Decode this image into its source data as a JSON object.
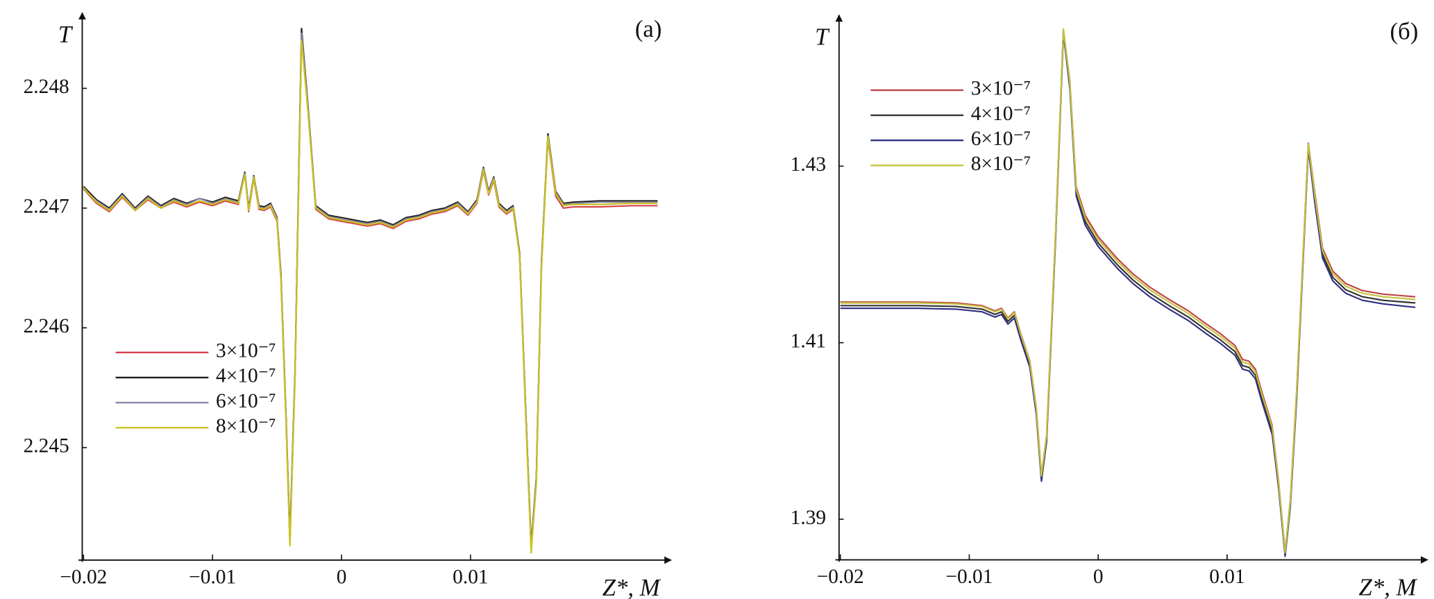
{
  "chart_data": [
    {
      "type": "line",
      "panel_label": "(a)",
      "y_label": "T",
      "x_label": "Z*, M",
      "legend": "center left",
      "xlim": [
        -0.0201,
        0.0254
      ],
      "ylim": [
        2.24406,
        2.2486
      ],
      "xticks": [
        {
          "value": -0.02,
          "label": "−0.02"
        },
        {
          "value": -0.01,
          "label": "−0.01"
        },
        0,
        0.01
      ],
      "yticks": [
        2.245,
        2.246,
        2.247,
        2.248
      ],
      "x": [
        -0.02,
        -0.019,
        -0.018,
        -0.017,
        -0.016,
        -0.015,
        -0.014,
        -0.013,
        -0.012,
        -0.011,
        -0.01,
        -0.009,
        -0.008,
        -0.0075,
        -0.0072,
        -0.0068,
        -0.0064,
        -0.006,
        -0.0055,
        -0.005,
        -0.0047,
        -0.0043,
        -0.004,
        -0.0036,
        -0.0031,
        -0.0026,
        -0.002,
        -0.001,
        0,
        0.001,
        0.002,
        0.003,
        0.004,
        0.005,
        0.006,
        0.007,
        0.008,
        0.009,
        0.0098,
        0.0105,
        0.011,
        0.0114,
        0.0118,
        0.0122,
        0.0128,
        0.0133,
        0.0138,
        0.0143,
        0.0147,
        0.0151,
        0.0155,
        0.016,
        0.0166,
        0.0172,
        0.018,
        0.02,
        0.0225,
        0.0245
      ],
      "series": [
        {
          "name": "3×10⁻⁷",
          "color": "#d4404c",
          "values": [
            2.24716,
            2.24704,
            2.24697,
            2.24709,
            2.24698,
            2.24707,
            2.247,
            2.24705,
            2.24701,
            2.24705,
            2.24702,
            2.24706,
            2.24703,
            2.24729,
            2.24697,
            2.24725,
            2.24699,
            2.24698,
            2.24701,
            2.24689,
            2.24642,
            2.24522,
            2.2442,
            2.24562,
            2.24845,
            2.24782,
            2.24699,
            2.24691,
            2.24689,
            2.24687,
            2.24685,
            2.24687,
            2.24683,
            2.24689,
            2.24691,
            2.24695,
            2.24697,
            2.24702,
            2.24694,
            2.24704,
            2.24731,
            2.24711,
            2.24723,
            2.24701,
            2.24695,
            2.24699,
            2.24661,
            2.24522,
            2.24414,
            2.24472,
            2.24652,
            2.24758,
            2.2471,
            2.247,
            2.24701,
            2.24701,
            2.24702,
            2.24702
          ]
        },
        {
          "name": "4×10⁻⁷",
          "color": "#1a1a1a",
          "values": [
            2.24718,
            2.24707,
            2.247,
            2.24712,
            2.247,
            2.2471,
            2.24702,
            2.24708,
            2.24704,
            2.24708,
            2.24705,
            2.24709,
            2.24706,
            2.2473,
            2.247,
            2.24727,
            2.24702,
            2.24701,
            2.24704,
            2.24692,
            2.24645,
            2.24525,
            2.24425,
            2.24565,
            2.2485,
            2.24785,
            2.24702,
            2.24694,
            2.24692,
            2.2469,
            2.24688,
            2.2469,
            2.24686,
            2.24692,
            2.24694,
            2.24698,
            2.247,
            2.24705,
            2.24697,
            2.24707,
            2.24734,
            2.24714,
            2.24726,
            2.24704,
            2.24698,
            2.24702,
            2.24663,
            2.24525,
            2.24418,
            2.24475,
            2.24655,
            2.24762,
            2.24714,
            2.24704,
            2.24705,
            2.24706,
            2.24706,
            2.24706
          ]
        },
        {
          "name": "6×10⁻⁷",
          "color": "#8a86a6",
          "values": [
            2.24716,
            2.24706,
            2.24699,
            2.24711,
            2.24699,
            2.24709,
            2.24701,
            2.24707,
            2.24703,
            2.24708,
            2.24704,
            2.24708,
            2.24705,
            2.24729,
            2.24699,
            2.24726,
            2.24701,
            2.247,
            2.24703,
            2.24691,
            2.24643,
            2.24523,
            2.24422,
            2.24563,
            2.24846,
            2.24783,
            2.24701,
            2.24693,
            2.24691,
            2.24689,
            2.24687,
            2.24689,
            2.24685,
            2.24691,
            2.24693,
            2.24697,
            2.24699,
            2.24704,
            2.24696,
            2.24706,
            2.24733,
            2.24713,
            2.24725,
            2.24703,
            2.24697,
            2.24701,
            2.24662,
            2.24523,
            2.24416,
            2.24473,
            2.24653,
            2.2476,
            2.24713,
            2.24703,
            2.24704,
            2.24705,
            2.24705,
            2.24705
          ]
        },
        {
          "name": "8×10⁻⁷",
          "color": "#c9c41e",
          "values": [
            2.24717,
            2.24705,
            2.24698,
            2.2471,
            2.24698,
            2.24708,
            2.247,
            2.24706,
            2.24702,
            2.24706,
            2.24703,
            2.24707,
            2.24704,
            2.24728,
            2.24698,
            2.24726,
            2.247,
            2.24699,
            2.24702,
            2.2469,
            2.2464,
            2.2452,
            2.24418,
            2.2456,
            2.2484,
            2.2478,
            2.247,
            2.24692,
            2.2469,
            2.24688,
            2.24686,
            2.24688,
            2.24684,
            2.2469,
            2.24692,
            2.24696,
            2.24698,
            2.24703,
            2.24695,
            2.24705,
            2.24732,
            2.24712,
            2.24724,
            2.24702,
            2.24696,
            2.247,
            2.2466,
            2.2452,
            2.24412,
            2.2447,
            2.2465,
            2.2476,
            2.24712,
            2.24702,
            2.24703,
            2.24703,
            2.24704,
            2.24704
          ]
        }
      ]
    },
    {
      "type": "line",
      "panel_label": "(б)",
      "y_label": "T",
      "x_label": "Z*, M",
      "legend": "upper left",
      "xlim": [
        -0.0201,
        0.0254
      ],
      "ylim": [
        1.3854,
        1.4467
      ],
      "xticks": [
        {
          "value": -0.02,
          "label": "−0.02"
        },
        {
          "value": -0.01,
          "label": "−0.01"
        },
        0,
        0.01
      ],
      "yticks": [
        1.39,
        1.41,
        1.43
      ],
      "x": [
        -0.02,
        -0.017,
        -0.014,
        -0.011,
        -0.009,
        -0.008,
        -0.0075,
        -0.007,
        -0.0065,
        -0.006,
        -0.0053,
        -0.0048,
        -0.0044,
        -0.004,
        -0.0033,
        -0.0027,
        -0.0022,
        -0.0017,
        -0.001,
        0,
        0.0015,
        0.0027,
        0.004,
        0.0055,
        0.007,
        0.0084,
        0.0095,
        0.0106,
        0.0112,
        0.0117,
        0.0122,
        0.0127,
        0.0135,
        0.014,
        0.0145,
        0.0149,
        0.0154,
        0.0163,
        0.0168,
        0.0174,
        0.0182,
        0.0192,
        0.0205,
        0.0221,
        0.0246
      ],
      "series": [
        {
          "name": "3×10⁻⁷",
          "color": "#c04444",
          "values": [
            1.4146,
            1.4146,
            1.4146,
            1.4145,
            1.4142,
            1.4136,
            1.4139,
            1.4128,
            1.4135,
            1.411,
            1.4079,
            1.4026,
            1.395,
            1.3995,
            1.4226,
            1.4455,
            1.4396,
            1.4276,
            1.4244,
            1.422,
            1.4195,
            1.4178,
            1.4163,
            1.4149,
            1.4136,
            1.4121,
            1.411,
            1.4097,
            1.4081,
            1.4079,
            1.407,
            1.4044,
            1.4006,
            1.3942,
            1.3863,
            1.3921,
            1.4047,
            1.4326,
            1.427,
            1.4207,
            1.4181,
            1.4167,
            1.4159,
            1.4155,
            1.4152
          ]
        },
        {
          "name": "4×10⁻⁷",
          "color": "#333333",
          "values": [
            1.4142,
            1.4142,
            1.4142,
            1.4141,
            1.4138,
            1.4132,
            1.4135,
            1.4124,
            1.4131,
            1.4106,
            1.4075,
            1.4022,
            1.3946,
            1.3991,
            1.4222,
            1.4453,
            1.4391,
            1.427,
            1.4237,
            1.4213,
            1.4188,
            1.4171,
            1.4156,
            1.4142,
            1.4129,
            1.4114,
            1.4103,
            1.409,
            1.4074,
            1.4072,
            1.4063,
            1.4037,
            1.4,
            1.3938,
            1.386,
            1.3917,
            1.4042,
            1.4322,
            1.4263,
            1.42,
            1.4174,
            1.416,
            1.4152,
            1.4148,
            1.4145
          ]
        },
        {
          "name": "6×10⁻⁷",
          "color": "#2e3080",
          "values": [
            1.4139,
            1.4139,
            1.4139,
            1.4138,
            1.4135,
            1.4129,
            1.4132,
            1.4121,
            1.4128,
            1.4103,
            1.4072,
            1.4019,
            1.3943,
            1.3988,
            1.4219,
            1.4451,
            1.4388,
            1.4266,
            1.4233,
            1.4209,
            1.4184,
            1.4167,
            1.4152,
            1.4138,
            1.4125,
            1.411,
            1.4099,
            1.4086,
            1.407,
            1.4068,
            1.4059,
            1.4033,
            1.3996,
            1.3935,
            1.3858,
            1.3914,
            1.4038,
            1.432,
            1.4259,
            1.4196,
            1.417,
            1.4156,
            1.4148,
            1.4144,
            1.414
          ]
        },
        {
          "name": "8×10⁻⁷",
          "color": "#c2c23c",
          "values": [
            1.4145,
            1.4145,
            1.4145,
            1.4144,
            1.4141,
            1.4135,
            1.4138,
            1.4127,
            1.4134,
            1.4109,
            1.4078,
            1.4025,
            1.3949,
            1.3994,
            1.4225,
            1.4455,
            1.4394,
            1.4273,
            1.4241,
            1.4217,
            1.4192,
            1.4175,
            1.416,
            1.4146,
            1.4133,
            1.4118,
            1.4107,
            1.4094,
            1.4078,
            1.4076,
            1.4067,
            1.4041,
            1.4004,
            1.3941,
            1.3862,
            1.392,
            1.4046,
            1.4325,
            1.4267,
            1.4204,
            1.4178,
            1.4164,
            1.4156,
            1.4152,
            1.4149
          ]
        }
      ]
    }
  ]
}
